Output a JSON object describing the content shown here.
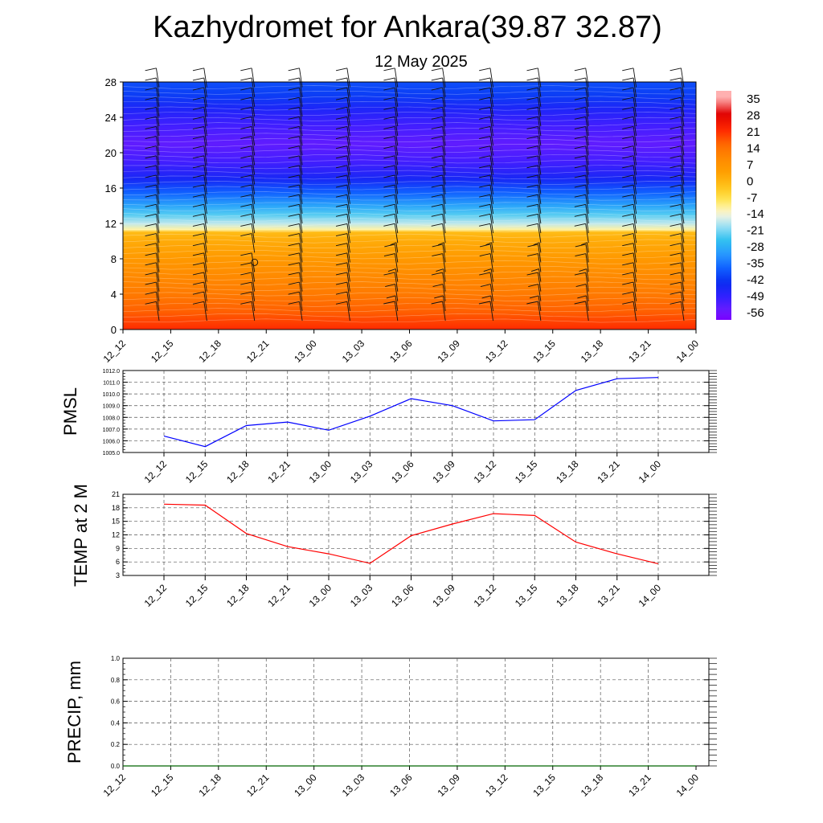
{
  "title": "Kazhydromet for Ankara(39.87 32.87)",
  "subtitle": "12 May 2025",
  "colorbar_labels": [
    "35",
    "28",
    "21",
    "14",
    "7",
    "0",
    "-7",
    "-14",
    "-21",
    "-28",
    "-35",
    "-42",
    "-49",
    "-56"
  ],
  "colors": {
    "pmsl_line": "#0000ff",
    "temp_line": "#ff0000",
    "precip_line": "#006400"
  },
  "chart_data": [
    {
      "type": "heatmap",
      "name": "vertical-profile",
      "x_tick_labels": [
        "12_12",
        "12_15",
        "12_18",
        "12_21",
        "13_00",
        "13_03",
        "13_06",
        "13_09",
        "13_12",
        "13_15",
        "13_18",
        "13_21",
        "14_00"
      ],
      "y_tick_labels": [
        "0",
        "4",
        "8",
        "12",
        "16",
        "20",
        "24",
        "28"
      ],
      "ylim": [
        0,
        28
      ],
      "colorbar_range": [
        -60,
        38
      ],
      "temperature_by_level": [
        [
          0,
          21
        ],
        [
          2,
          16
        ],
        [
          4,
          12
        ],
        [
          6,
          9
        ],
        [
          8,
          5
        ],
        [
          10,
          1
        ],
        [
          11,
          -2
        ],
        [
          11.3,
          -12
        ],
        [
          12,
          -18
        ],
        [
          13,
          -24
        ],
        [
          14,
          -30
        ],
        [
          15.5,
          -38
        ],
        [
          17,
          -46
        ],
        [
          19,
          -52
        ],
        [
          21,
          -55
        ],
        [
          23,
          -52
        ],
        [
          25,
          -47
        ],
        [
          26.5,
          -42
        ],
        [
          28,
          -40
        ]
      ],
      "wind_barbs": true
    },
    {
      "type": "line",
      "name": "pmsl",
      "ylabel": "PMSL",
      "x": [
        "12_12",
        "12_15",
        "12_18",
        "12_21",
        "13_00",
        "13_03",
        "13_06",
        "13_09",
        "13_12",
        "13_15",
        "13_18",
        "13_21",
        "14_00"
      ],
      "y_tick_labels": [
        "1005.0",
        "1006.0",
        "1007.0",
        "1008.0",
        "1009.0",
        "1010.0",
        "1011.0",
        "1012.0"
      ],
      "ylim": [
        1005,
        1012
      ],
      "values": [
        1006.4,
        1005.5,
        1007.3,
        1007.6,
        1006.9,
        1008.1,
        1009.6,
        1009.0,
        1007.7,
        1007.8,
        1010.3,
        1011.3,
        1011.4
      ]
    },
    {
      "type": "line",
      "name": "temperature",
      "ylabel": "TEMP at 2 M",
      "x": [
        "12_12",
        "12_15",
        "12_18",
        "12_21",
        "13_00",
        "13_03",
        "13_06",
        "13_09",
        "13_12",
        "13_15",
        "13_18",
        "13_21",
        "14_00"
      ],
      "y_tick_labels": [
        "3",
        "6",
        "9",
        "12",
        "15",
        "18",
        "21"
      ],
      "ylim": [
        3,
        21
      ],
      "values": [
        18.8,
        18.6,
        12.3,
        9.4,
        7.8,
        5.7,
        11.8,
        14.4,
        16.7,
        16.3,
        10.4,
        7.8,
        5.6
      ]
    },
    {
      "type": "line",
      "name": "precipitation",
      "ylabel": "PRECIP, mm",
      "x_tick_labels": [
        "12_12",
        "12_15",
        "12_18",
        "12_21",
        "13_00",
        "13_03",
        "13_06",
        "13_09",
        "13_12",
        "13_15",
        "13_18",
        "13_21",
        "14_00"
      ],
      "y_tick_labels": [
        "0.0",
        "0.2",
        "0.4",
        "0.6",
        "0.8",
        "1.0"
      ],
      "ylim": [
        0,
        1
      ],
      "values": [
        0,
        0,
        0,
        0,
        0,
        0,
        0,
        0,
        0,
        0,
        0,
        0,
        0
      ]
    }
  ]
}
